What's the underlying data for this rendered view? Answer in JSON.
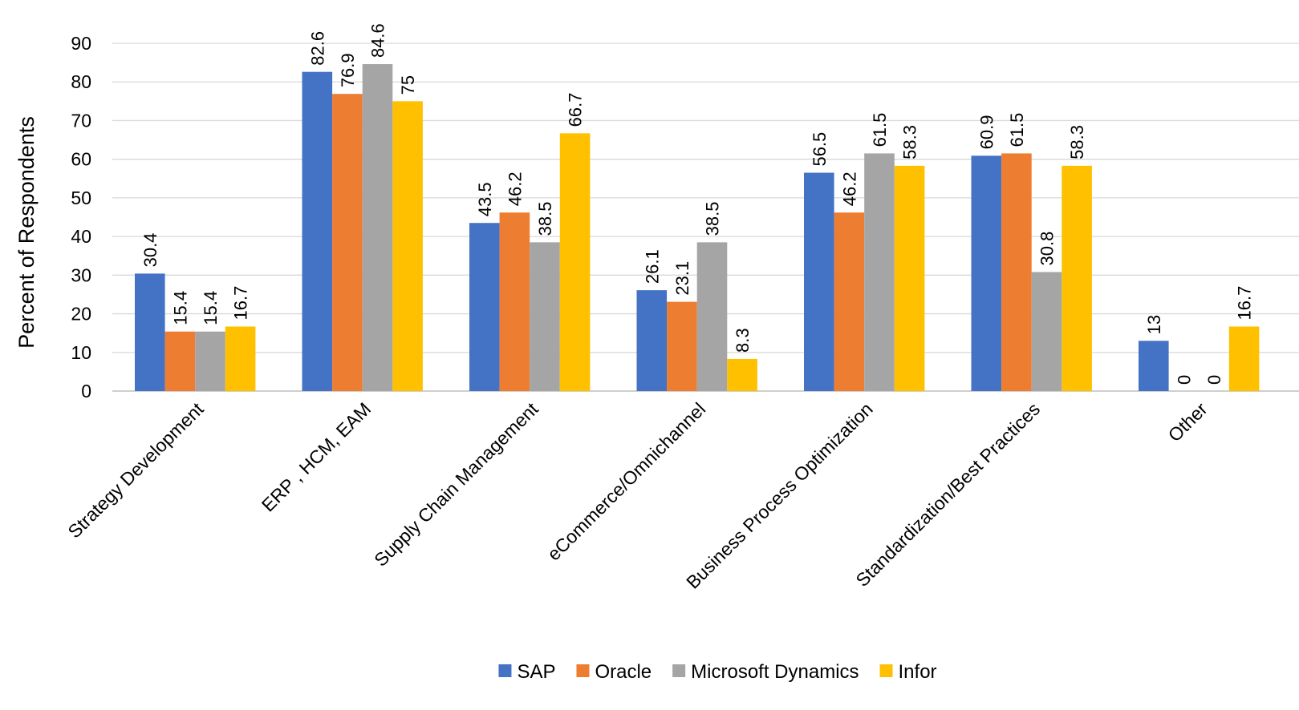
{
  "chart_data": {
    "type": "bar",
    "title": "",
    "xlabel": "",
    "ylabel": "Percent of Respondents",
    "ylim": [
      0,
      90
    ],
    "yticks": [
      0,
      10,
      20,
      30,
      40,
      50,
      60,
      70,
      80,
      90
    ],
    "grid": true,
    "legend_position": "bottom",
    "categories": [
      "Strategy Development",
      "ERP , HCM, EAM",
      "Supply Chain Management",
      "eCommerce/Omnichannel",
      "Business Process Optimization",
      "Standardization/Best Practices",
      "Other"
    ],
    "series": [
      {
        "name": "SAP",
        "color": "#4472c4",
        "values": [
          30.4,
          82.6,
          43.5,
          26.1,
          56.5,
          60.9,
          13
        ]
      },
      {
        "name": "Oracle",
        "color": "#ed7d31",
        "values": [
          15.4,
          76.9,
          46.2,
          23.1,
          46.2,
          61.5,
          0
        ]
      },
      {
        "name": "Microsoft Dynamics",
        "color": "#a5a5a5",
        "values": [
          15.4,
          84.6,
          38.5,
          38.5,
          61.5,
          30.8,
          0
        ]
      },
      {
        "name": "Infor",
        "color": "#ffc000",
        "values": [
          16.7,
          75,
          66.7,
          8.3,
          58.3,
          58.3,
          16.7
        ]
      }
    ]
  }
}
